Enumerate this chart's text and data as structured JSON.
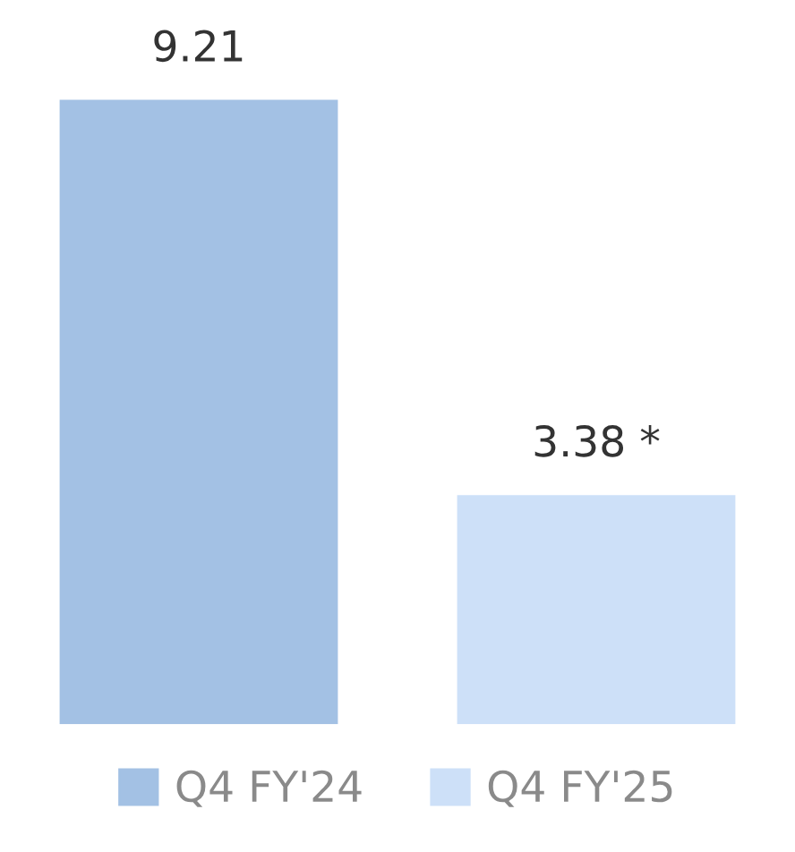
{
  "chart_data": {
    "type": "bar",
    "categories": [
      null
    ],
    "series": [
      {
        "name": "Q4 FY'24",
        "color": "#a3c1e4",
        "values": [
          9.21
        ],
        "value_labels": [
          "9.21"
        ]
      },
      {
        "name": "Q4 FY'25",
        "color": "#cde0f8",
        "values": [
          3.38
        ],
        "value_labels": [
          "3.38 *"
        ]
      }
    ],
    "tick_labels": false,
    "legend": "bottom",
    "grid": false
  }
}
